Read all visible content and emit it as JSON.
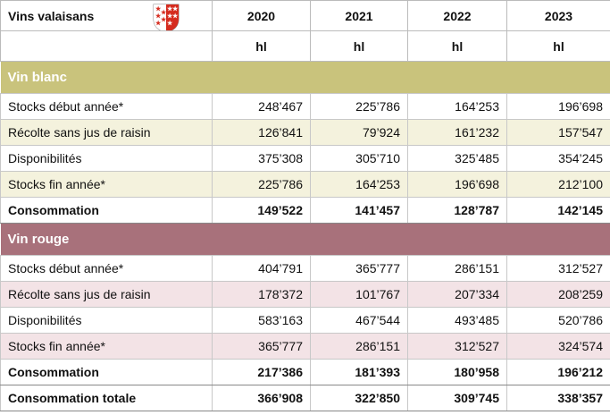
{
  "header": {
    "title": "Vins valaisans",
    "years": [
      "2020",
      "2021",
      "2022",
      "2023"
    ],
    "units": [
      "hl",
      "hl",
      "hl",
      "hl"
    ]
  },
  "sections": [
    {
      "name": "Vin blanc",
      "rows": [
        {
          "label": "Stocks début année*",
          "values": [
            "248’467",
            "225’786",
            "164’253",
            "196’698"
          ]
        },
        {
          "label": "Récolte sans jus de raisin",
          "values": [
            "126’841",
            "79’924",
            "161’232",
            "157’547"
          ]
        },
        {
          "label": "Disponibilités",
          "values": [
            "375’308",
            "305’710",
            "325’485",
            "354’245"
          ]
        },
        {
          "label": "Stocks fin année*",
          "values": [
            "225’786",
            "164’253",
            "196’698",
            "212’100"
          ]
        },
        {
          "label": "Consommation",
          "values": [
            "149’522",
            "141’457",
            "128’787",
            "142’145"
          ]
        }
      ]
    },
    {
      "name": "Vin rouge",
      "rows": [
        {
          "label": "Stocks début année*",
          "values": [
            "404’791",
            "365’777",
            "286’151",
            "312’527"
          ]
        },
        {
          "label": "Récolte sans jus de raisin",
          "values": [
            "178’372",
            "101’767",
            "207’334",
            "208’259"
          ]
        },
        {
          "label": "Disponibilités",
          "values": [
            "583’163",
            "467’544",
            "493’485",
            "520’786"
          ]
        },
        {
          "label": "Stocks fin année*",
          "values": [
            "365’777",
            "286’151",
            "312’527",
            "324’574"
          ]
        },
        {
          "label": "Consommation",
          "values": [
            "217’386",
            "181’393",
            "180’958",
            "196’212"
          ]
        }
      ]
    }
  ],
  "total": {
    "label": "Consommation totale",
    "values": [
      "366’908",
      "322’850",
      "309’745",
      "338’357"
    ]
  }
}
